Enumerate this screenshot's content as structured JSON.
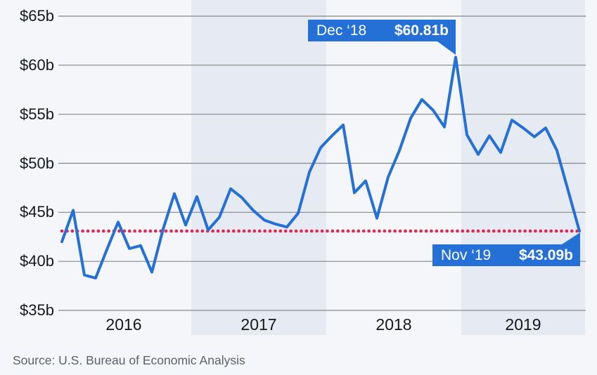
{
  "source": "Source: U.S. Bureau of Economic Analysis",
  "colors": {
    "line": "#2470d6",
    "annotation_background": "#2470d6",
    "annotation_text": "#ffffff",
    "reference_line": "#e4234f",
    "year_band": "#e6ebf3",
    "background": "#f4f6fa",
    "gridline": "#868686",
    "axis_text": "#15181c",
    "source_text": "#5c626a"
  },
  "chart_data": {
    "type": "line",
    "title": "",
    "xlabel": "",
    "ylabel": "",
    "ylim": [
      35,
      65
    ],
    "grid": "horizontal",
    "legend": "none",
    "x": [
      "Jan 2016",
      "Feb 2016",
      "Mar 2016",
      "Apr 2016",
      "May 2016",
      "Jun 2016",
      "Jul 2016",
      "Aug 2016",
      "Sep 2016",
      "Oct 2016",
      "Nov 2016",
      "Dec 2016",
      "Jan 2017",
      "Feb 2017",
      "Mar 2017",
      "Apr 2017",
      "May 2017",
      "Jun 2017",
      "Jul 2017",
      "Aug 2017",
      "Sep 2017",
      "Oct 2017",
      "Nov 2017",
      "Dec 2017",
      "Jan 2018",
      "Feb 2018",
      "Mar 2018",
      "Apr 2018",
      "May 2018",
      "Jun 2018",
      "Jul 2018",
      "Aug 2018",
      "Sep 2018",
      "Oct 2018",
      "Nov 2018",
      "Dec 2018",
      "Jan 2019",
      "Feb 2019",
      "Mar 2019",
      "Apr 2019",
      "May 2019",
      "Jun 2019",
      "Jul 2019",
      "Aug 2019",
      "Sep 2019",
      "Oct 2019",
      "Nov 2019"
    ],
    "values": [
      42.0,
      45.2,
      38.6,
      38.3,
      41.2,
      44.0,
      41.3,
      41.6,
      38.9,
      43.3,
      46.9,
      43.7,
      46.6,
      43.2,
      44.5,
      47.4,
      46.5,
      45.2,
      44.2,
      43.8,
      43.5,
      44.9,
      49.1,
      51.6,
      52.8,
      53.9,
      47.0,
      48.2,
      44.4,
      48.6,
      51.3,
      54.6,
      56.5,
      55.4,
      53.7,
      60.81,
      52.9,
      50.9,
      52.8,
      51.1,
      54.4,
      53.6,
      52.7,
      53.6,
      51.3,
      47.2,
      43.09
    ],
    "y_ticks": [
      "$65b",
      "$60b",
      "$55b",
      "$50b",
      "$45b",
      "$40b",
      "$35b"
    ],
    "y_tick_values": [
      65,
      60,
      55,
      50,
      45,
      40,
      35
    ],
    "x_year_labels": [
      "2016",
      "2017",
      "2018",
      "2019"
    ],
    "shaded_years": [
      "2017",
      "2019"
    ],
    "reference_line": {
      "value": 43.09,
      "style": "dotted"
    },
    "annotations": [
      {
        "label": "Dec ‘18",
        "value_label": "$60.81b",
        "value": 60.81,
        "month": "Dec 2018"
      },
      {
        "label": "Nov ‘19",
        "value_label": "$43.09b",
        "value": 43.09,
        "month": "Nov 2019"
      }
    ]
  }
}
